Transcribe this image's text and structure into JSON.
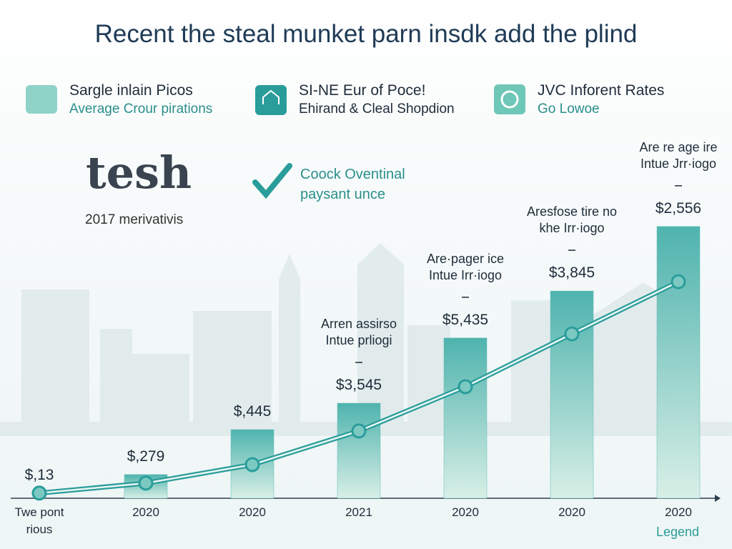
{
  "header": {
    "title": "Recent the steal munket parn insdk add the plind",
    "features": [
      {
        "title": "Sargle inlain Picos",
        "subtitle": "Average Crour pirations"
      },
      {
        "title": "SI-NE Eur of Poce!",
        "subtitle": "Ehirand & Cleal Shopdion"
      },
      {
        "title": "JVC Inforent Rates",
        "subtitle": "Go Lowoe"
      }
    ]
  },
  "brand": {
    "logo": "tesh",
    "caption": "2017 merivativis"
  },
  "callout": "Coock Oventinal\npaysant unce",
  "chart_data": {
    "type": "combo",
    "categories": [
      "Twe pont\nrious",
      "2020",
      "2020",
      "2021",
      "2020",
      "2020",
      "2020"
    ],
    "series": [
      {
        "type": "bar",
        "color": "#5fbab5",
        "values": [
          null,
          6.9,
          20,
          27.7,
          46.7,
          60.4,
          79.2
        ]
      },
      {
        "type": "line",
        "color": "#2a9d9a",
        "values": [
          1.5,
          4.4,
          9.8,
          19.6,
          32.5,
          47.9,
          63.1
        ]
      }
    ],
    "ylim": [
      0,
      100
    ],
    "price_labels": [
      "$,13",
      "$,279",
      "$,445",
      "$3,545",
      "$5,435",
      "$3,845",
      "$2,556"
    ],
    "notes": [
      null,
      null,
      null,
      [
        "Arren assirso",
        "Intue prliogi"
      ],
      [
        "Are·pager ice",
        "Intue Irr·iogo"
      ],
      [
        "Aresfose tire no",
        "khe Irr·iogo"
      ],
      [
        "Are re age ire",
        "Intue Jrr·iogo"
      ]
    ],
    "legend": "Legend"
  }
}
